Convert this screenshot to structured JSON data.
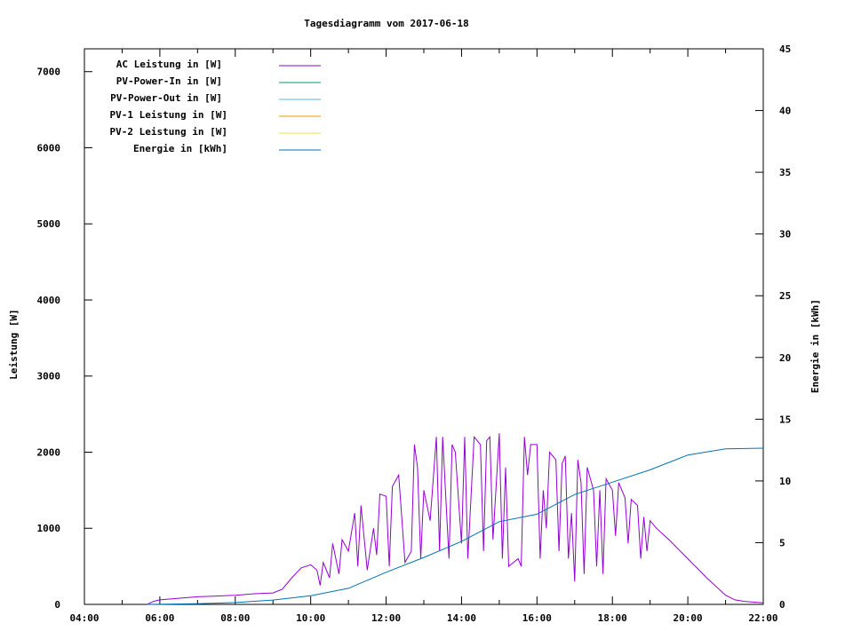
{
  "chart_data": {
    "type": "line",
    "title": "Tagesdiagramm vom 2017-06-18",
    "xlabel": "",
    "ylabel": "Leistung [W]",
    "y2label": "Energie in [kWh]",
    "xlim": [
      "04:00",
      "22:00"
    ],
    "ylim": [
      0,
      7300
    ],
    "y2lim": [
      0,
      45
    ],
    "x_ticks": [
      "04:00",
      "06:00",
      "08:00",
      "10:00",
      "12:00",
      "14:00",
      "16:00",
      "18:00",
      "20:00",
      "22:00"
    ],
    "y_ticks": [
      0,
      1000,
      2000,
      3000,
      4000,
      5000,
      6000,
      7000
    ],
    "y2_ticks": [
      0,
      5,
      10,
      15,
      20,
      25,
      30,
      35,
      40,
      45
    ],
    "grid": false,
    "legend_position": "top-left",
    "series": [
      {
        "name": "AC Leistung in [W]",
        "color": "#9400d3",
        "axis": "left",
        "x": [
          "05:40",
          "05:50",
          "06:00",
          "06:30",
          "07:00",
          "07:30",
          "08:00",
          "08:30",
          "09:00",
          "09:15",
          "09:30",
          "09:45",
          "10:00",
          "10:10",
          "10:15",
          "10:20",
          "10:30",
          "10:35",
          "10:45",
          "10:50",
          "11:00",
          "11:10",
          "11:15",
          "11:20",
          "11:30",
          "11:40",
          "11:45",
          "11:50",
          "12:00",
          "12:05",
          "12:10",
          "12:20",
          "12:30",
          "12:40",
          "12:45",
          "12:50",
          "12:55",
          "13:00",
          "13:10",
          "13:20",
          "13:25",
          "13:30",
          "13:40",
          "13:45",
          "13:50",
          "14:00",
          "14:05",
          "14:10",
          "14:20",
          "14:30",
          "14:35",
          "14:40",
          "14:45",
          "14:50",
          "15:00",
          "15:05",
          "15:10",
          "15:15",
          "15:30",
          "15:35",
          "15:40",
          "15:45",
          "15:50",
          "16:00",
          "16:05",
          "16:10",
          "16:15",
          "16:20",
          "16:30",
          "16:35",
          "16:40",
          "16:45",
          "16:50",
          "16:55",
          "17:00",
          "17:05",
          "17:10",
          "17:15",
          "17:20",
          "17:30",
          "17:35",
          "17:40",
          "17:45",
          "17:50",
          "18:00",
          "18:05",
          "18:10",
          "18:20",
          "18:25",
          "18:30",
          "18:40",
          "18:45",
          "18:50",
          "18:55",
          "19:00",
          "19:10",
          "19:30",
          "20:00",
          "20:30",
          "21:00",
          "21:15",
          "21:30",
          "22:00"
        ],
        "values": [
          0,
          40,
          60,
          80,
          100,
          110,
          120,
          140,
          150,
          200,
          350,
          480,
          520,
          450,
          250,
          550,
          350,
          800,
          400,
          850,
          700,
          1200,
          500,
          1300,
          450,
          1000,
          650,
          1450,
          1420,
          500,
          1550,
          1700,
          550,
          700,
          2100,
          1800,
          600,
          1500,
          1100,
          2200,
          700,
          2200,
          600,
          2100,
          2000,
          800,
          2200,
          600,
          2200,
          2100,
          700,
          2150,
          2200,
          850,
          2250,
          600,
          1800,
          500,
          600,
          500,
          2200,
          1700,
          2100,
          2100,
          600,
          1500,
          1000,
          2000,
          1900,
          700,
          1850,
          1950,
          600,
          1200,
          300,
          1900,
          1600,
          400,
          1800,
          1500,
          500,
          1500,
          400,
          1650,
          1500,
          900,
          1600,
          1400,
          800,
          1380,
          1300,
          600,
          1150,
          700,
          1100,
          1000,
          850,
          600,
          350,
          120,
          60,
          40,
          20
        ]
      },
      {
        "name": "PV-Power-In in [W]",
        "color": "#009e73",
        "axis": "left",
        "x": [],
        "values": []
      },
      {
        "name": "PV-Power-Out in [W]",
        "color": "#56b4e9",
        "axis": "left",
        "x": [],
        "values": []
      },
      {
        "name": "PV-1 Leistung in [W]",
        "color": "#e69f00",
        "axis": "left",
        "x": [],
        "values": []
      },
      {
        "name": "PV-2 Leistung in [W]",
        "color": "#f0e442",
        "axis": "left",
        "x": [],
        "values": []
      },
      {
        "name": "Energie in [kWh]",
        "color": "#0072b2",
        "axis": "right",
        "x": [
          "05:40",
          "07:00",
          "08:00",
          "09:00",
          "10:00",
          "11:00",
          "12:00",
          "13:00",
          "14:00",
          "15:00",
          "16:00",
          "17:00",
          "18:00",
          "19:00",
          "20:00",
          "21:00",
          "22:00"
        ],
        "values": [
          0,
          0.05,
          0.15,
          0.35,
          0.7,
          1.3,
          2.6,
          3.8,
          5.1,
          6.7,
          7.3,
          8.9,
          9.9,
          10.9,
          12.1,
          12.6,
          12.65
        ]
      }
    ]
  }
}
